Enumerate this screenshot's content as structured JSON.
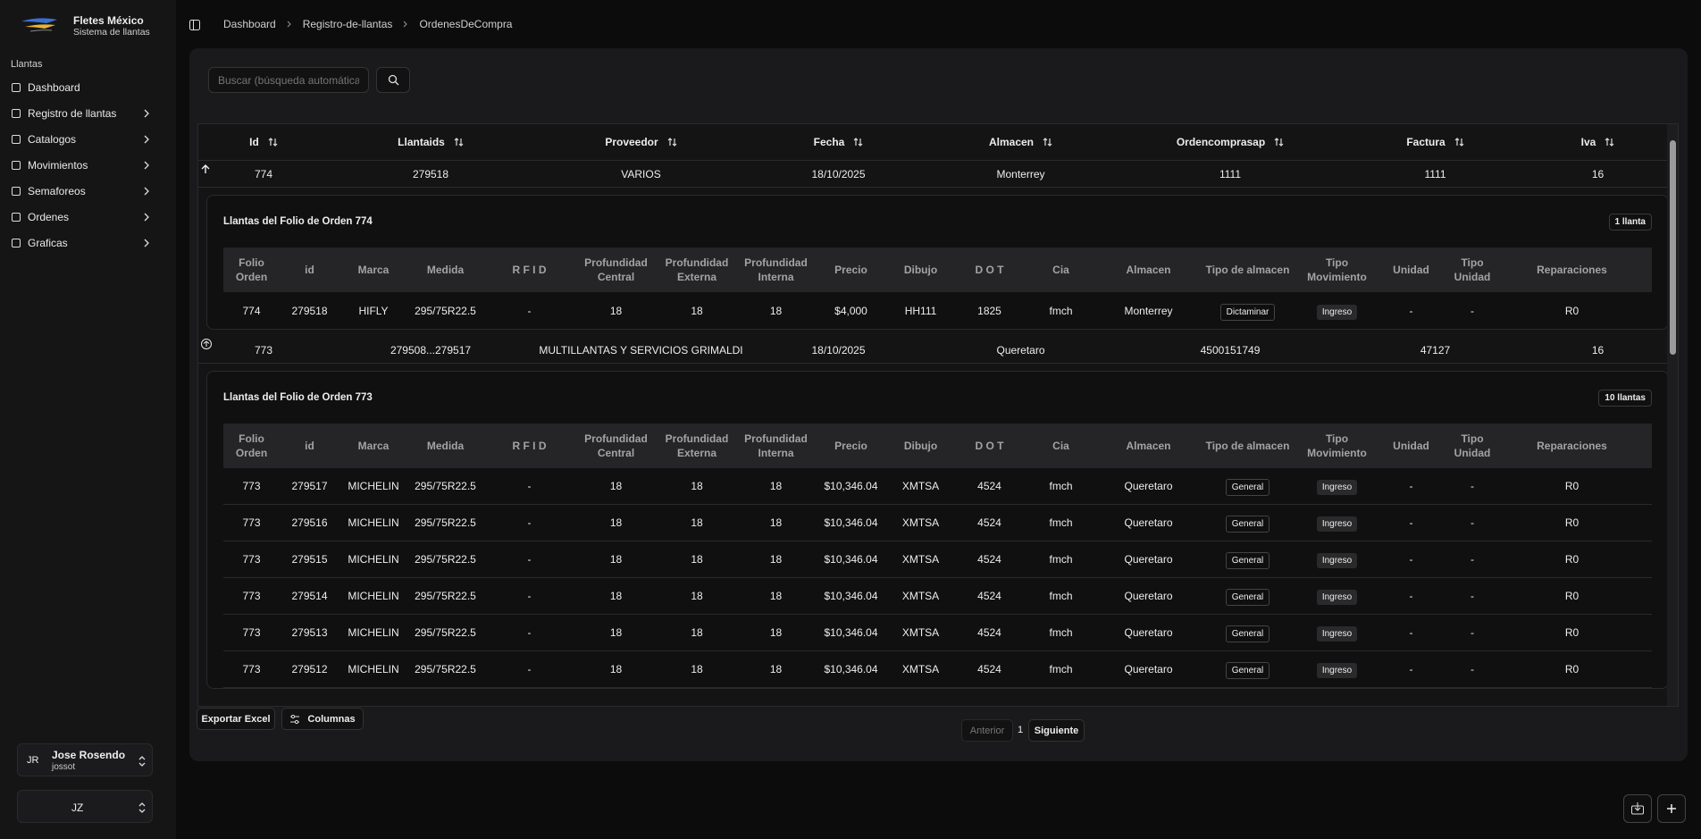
{
  "sidebar": {
    "brand": {
      "title": "Fletes México",
      "subtitle": "Sistema de llantas"
    },
    "section": "Llantas",
    "nav": [
      {
        "label": "Dashboard"
      },
      {
        "label": "Registro de llantas"
      },
      {
        "label": "Catalogos"
      },
      {
        "label": "Movimientos"
      },
      {
        "label": "Semaforeos"
      },
      {
        "label": "Ordenes"
      },
      {
        "label": "Graficas"
      }
    ],
    "user": {
      "initials": "JR",
      "name": "Jose Rosendo",
      "handle": "jossot"
    },
    "team": {
      "label": "JZ"
    }
  },
  "breadcrumb": [
    "Dashboard",
    "Registro-de-llantas",
    "OrdenesDeCompra"
  ],
  "search": {
    "placeholder": "Buscar (búsqueda automática"
  },
  "table": {
    "columns": [
      "Id",
      "Llantaids",
      "Proveedor",
      "Fecha",
      "Almacen",
      "Ordencomprasap",
      "Factura",
      "Iva"
    ],
    "detail_columns": [
      "Folio Orden",
      "id",
      "Marca",
      "Medida",
      "R F I D",
      "Profundidad Central",
      "Profundidad Externa",
      "Profundidad Interna",
      "Precio",
      "Dibujo",
      "D O T",
      "Cia",
      "Almacen",
      "Tipo de almacen",
      "Tipo Movimiento",
      "Unidad",
      "Tipo Unidad",
      "Reparaciones"
    ],
    "rows": [
      {
        "cells": [
          "774",
          "279518",
          "VARIOS",
          "18/10/2025",
          "Monterrey",
          "1111",
          "1111",
          "16"
        ],
        "detail": {
          "title": "Llantas del Folio de Orden 774",
          "count": "1 llanta",
          "rows": [
            [
              "774",
              "279518",
              "HIFLY",
              "295/75R22.5",
              "-",
              "18",
              "18",
              "18",
              "$4,000",
              "HH111",
              "1825",
              "fmch",
              "Monterrey",
              "Dictaminar",
              "Ingreso",
              "-",
              "-",
              "R0"
            ]
          ]
        }
      },
      {
        "cells": [
          "773",
          "279508...279517",
          "MULTILLANTAS Y SERVICIOS GRIMALDI",
          "18/10/2025",
          "Queretaro",
          "4500151749",
          "47127",
          "16"
        ],
        "detail": {
          "title": "Llantas del Folio de Orden 773",
          "count": "10 llantas",
          "rows": [
            [
              "773",
              "279517",
              "MICHELIN",
              "295/75R22.5",
              "-",
              "18",
              "18",
              "18",
              "$10,346.04",
              "XMTSA",
              "4524",
              "fmch",
              "Queretaro",
              "General",
              "Ingreso",
              "-",
              "-",
              "R0"
            ],
            [
              "773",
              "279516",
              "MICHELIN",
              "295/75R22.5",
              "-",
              "18",
              "18",
              "18",
              "$10,346.04",
              "XMTSA",
              "4524",
              "fmch",
              "Queretaro",
              "General",
              "Ingreso",
              "-",
              "-",
              "R0"
            ],
            [
              "773",
              "279515",
              "MICHELIN",
              "295/75R22.5",
              "-",
              "18",
              "18",
              "18",
              "$10,346.04",
              "XMTSA",
              "4524",
              "fmch",
              "Queretaro",
              "General",
              "Ingreso",
              "-",
              "-",
              "R0"
            ],
            [
              "773",
              "279514",
              "MICHELIN",
              "295/75R22.5",
              "-",
              "18",
              "18",
              "18",
              "$10,346.04",
              "XMTSA",
              "4524",
              "fmch",
              "Queretaro",
              "General",
              "Ingreso",
              "-",
              "-",
              "R0"
            ],
            [
              "773",
              "279513",
              "MICHELIN",
              "295/75R22.5",
              "-",
              "18",
              "18",
              "18",
              "$10,346.04",
              "XMTSA",
              "4524",
              "fmch",
              "Queretaro",
              "General",
              "Ingreso",
              "-",
              "-",
              "R0"
            ],
            [
              "773",
              "279512",
              "MICHELIN",
              "295/75R22.5",
              "-",
              "18",
              "18",
              "18",
              "$10,346.04",
              "XMTSA",
              "4524",
              "fmch",
              "Queretaro",
              "General",
              "Ingreso",
              "-",
              "-",
              "R0"
            ]
          ]
        }
      }
    ]
  },
  "footer": {
    "export": "Exportar Excel",
    "columns": "Columnas",
    "pagination": {
      "previous": "Anterior",
      "page": "1",
      "next": "Siguiente"
    }
  }
}
